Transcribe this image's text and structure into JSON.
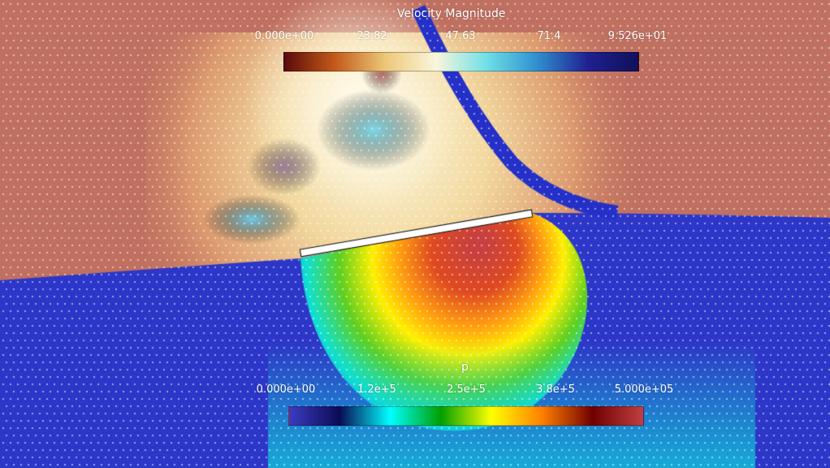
{
  "velocity_legend": {
    "title": "Velocity Magnitude",
    "ticks": [
      "0.000e+00",
      "23.82",
      "47.63",
      "71.4",
      "9.526e+01"
    ],
    "colors": [
      "#5a0a0a",
      "#c35a1a",
      "#ecc878",
      "#faf6dc",
      "#6fe0e6",
      "#2f8fd0",
      "#202090",
      "#10105a"
    ]
  },
  "pressure_legend": {
    "title": "p",
    "ticks": [
      "0.000e+00",
      "1.2e+5",
      "2.5e+5",
      "3.8e+5",
      "5.000e+05"
    ],
    "colors": [
      "#3b3cc0",
      "#0b0b55",
      "#00ffff",
      "#00a000",
      "#ffff00",
      "#ff7f00",
      "#700000",
      "#c04040"
    ]
  },
  "scene": {
    "air_color": "#c07060",
    "water_color": "#2c36c8",
    "jet_color": "#2530c8",
    "plate_color": "#ffffff"
  }
}
